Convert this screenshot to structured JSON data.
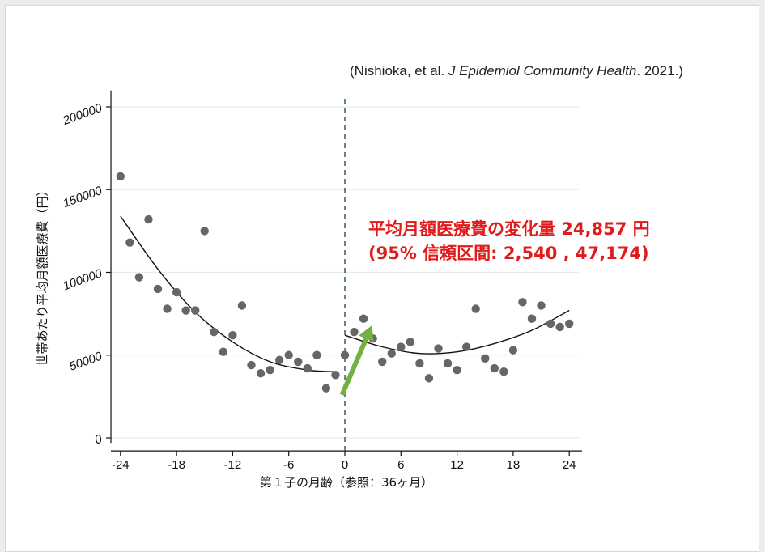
{
  "citation": {
    "prefix": "(Nishioka, et al. ",
    "journal": "J Epidemiol Community Health",
    "suffix": ". 2021.)"
  },
  "annotation": {
    "line1": "平均月額医療費の変化量 24,857 円",
    "line2": "(95% 信頼区間: 2,540 , 47,174)"
  },
  "colors": {
    "point": "#666666",
    "fit": "#111111",
    "cutoff": "#4a6378",
    "arrow": "#72b043",
    "annotation": "#e01b1b"
  },
  "chart_data": {
    "type": "scatter",
    "xlabel": "第１子の月齢（参照：36ヶ月）",
    "ylabel": "世帯あたり平均月額医療費（円）",
    "xlim": [
      -24.5,
      24.5
    ],
    "ylim": [
      -3000,
      205000
    ],
    "x_ticks": [
      -24,
      -18,
      -12,
      -6,
      0,
      6,
      12,
      18,
      24
    ],
    "x_tick_labels": [
      "-24",
      "-18",
      "-12",
      "-6",
      "0",
      "6",
      "12",
      "18",
      "24"
    ],
    "y_ticks": [
      0,
      50000,
      100000,
      150000,
      200000
    ],
    "y_tick_labels": [
      "0",
      "50000",
      "100000",
      "150000",
      "200000"
    ],
    "grid": "horizontal",
    "cutoff_x": 0,
    "points": [
      {
        "x": -24,
        "y": 158000
      },
      {
        "x": -23,
        "y": 118000
      },
      {
        "x": -22,
        "y": 97000
      },
      {
        "x": -21,
        "y": 132000
      },
      {
        "x": -20,
        "y": 90000
      },
      {
        "x": -19,
        "y": 78000
      },
      {
        "x": -18,
        "y": 88000
      },
      {
        "x": -17,
        "y": 77000
      },
      {
        "x": -16,
        "y": 77000
      },
      {
        "x": -15,
        "y": 125000
      },
      {
        "x": -14,
        "y": 64000
      },
      {
        "x": -13,
        "y": 52000
      },
      {
        "x": -12,
        "y": 62000
      },
      {
        "x": -11,
        "y": 80000
      },
      {
        "x": -10,
        "y": 44000
      },
      {
        "x": -9,
        "y": 39000
      },
      {
        "x": -8,
        "y": 41000
      },
      {
        "x": -7,
        "y": 47000
      },
      {
        "x": -6,
        "y": 50000
      },
      {
        "x": -5,
        "y": 46000
      },
      {
        "x": -4,
        "y": 42000
      },
      {
        "x": -3,
        "y": 50000
      },
      {
        "x": -2,
        "y": 30000
      },
      {
        "x": -1,
        "y": 38000
      },
      {
        "x": 0,
        "y": 50000
      },
      {
        "x": 1,
        "y": 64000
      },
      {
        "x": 2,
        "y": 72000
      },
      {
        "x": 3,
        "y": 60000
      },
      {
        "x": 4,
        "y": 46000
      },
      {
        "x": 5,
        "y": 51000
      },
      {
        "x": 6,
        "y": 55000
      },
      {
        "x": 7,
        "y": 58000
      },
      {
        "x": 8,
        "y": 45000
      },
      {
        "x": 9,
        "y": 36000
      },
      {
        "x": 10,
        "y": 54000
      },
      {
        "x": 11,
        "y": 45000
      },
      {
        "x": 12,
        "y": 41000
      },
      {
        "x": 13,
        "y": 55000
      },
      {
        "x": 14,
        "y": 78000
      },
      {
        "x": 15,
        "y": 48000
      },
      {
        "x": 16,
        "y": 42000
      },
      {
        "x": 17,
        "y": 40000
      },
      {
        "x": 18,
        "y": 53000
      },
      {
        "x": 19,
        "y": 82000
      },
      {
        "x": 20,
        "y": 72000
      },
      {
        "x": 21,
        "y": 80000
      },
      {
        "x": 22,
        "y": 69000
      },
      {
        "x": 23,
        "y": 67000
      },
      {
        "x": 24,
        "y": 69000
      }
    ],
    "fit_before": [
      {
        "x": -24,
        "y": 134000
      },
      {
        "x": -20,
        "y": 102000
      },
      {
        "x": -16,
        "y": 76000
      },
      {
        "x": -12,
        "y": 58000
      },
      {
        "x": -8,
        "y": 46000
      },
      {
        "x": -4,
        "y": 41000
      },
      {
        "x": -1,
        "y": 40000
      }
    ],
    "fit_after": [
      {
        "x": 0,
        "y": 62000
      },
      {
        "x": 4,
        "y": 55000
      },
      {
        "x": 8,
        "y": 51000
      },
      {
        "x": 12,
        "y": 52000
      },
      {
        "x": 16,
        "y": 57000
      },
      {
        "x": 20,
        "y": 65000
      },
      {
        "x": 24,
        "y": 77000
      }
    ],
    "arrow": {
      "from": {
        "x": -0.3,
        "y": 26000
      },
      "to": {
        "x": 2.9,
        "y": 68000
      }
    }
  }
}
